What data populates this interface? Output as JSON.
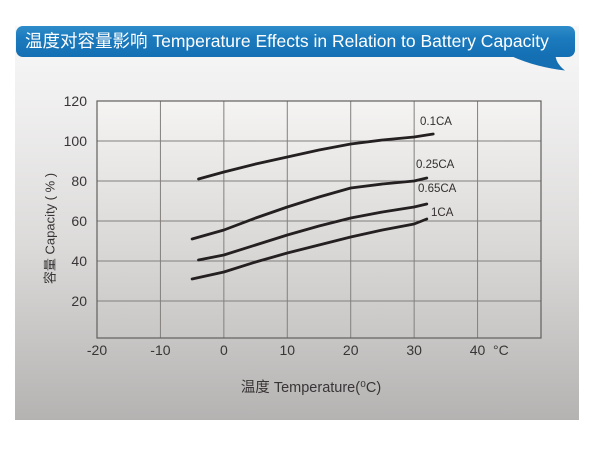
{
  "banner": {
    "text": "温度对容量影响 Temperature Effects in Relation to Battery Capacity"
  },
  "colors": {
    "banner_blue": "#1b7abd",
    "curve": "#241f20",
    "grid": "#82807e",
    "frame": "#61605e",
    "text": "#393536"
  },
  "chart_data": {
    "type": "line",
    "title": "温度对容量影响 Temperature Effects in Relation to Battery Capacity",
    "xlabel": "温度  Temperature(⁰C)",
    "ylabel": "容量 Capacity ( % )",
    "x_unit": "°C",
    "xlim": [
      -20,
      50
    ],
    "ylim": [
      0,
      120
    ],
    "x_ticks": [
      -20,
      -10,
      0,
      10,
      20,
      30,
      40
    ],
    "y_ticks": [
      120,
      100,
      80,
      60,
      40,
      20
    ],
    "grid": "on",
    "legend_position": "labels-at-line-ends",
    "series": [
      {
        "name": "0.1CA",
        "points": [
          [
            -4,
            81
          ],
          [
            0,
            84.5
          ],
          [
            5,
            88.5
          ],
          [
            10,
            92
          ],
          [
            15,
            95.5
          ],
          [
            20,
            98.5
          ],
          [
            25,
            100.5
          ],
          [
            30,
            102
          ],
          [
            33,
            103.5
          ]
        ]
      },
      {
        "name": "0.25CA",
        "points": [
          [
            -5,
            51
          ],
          [
            0,
            55.5
          ],
          [
            5,
            61.5
          ],
          [
            10,
            67
          ],
          [
            15,
            72
          ],
          [
            20,
            76.5
          ],
          [
            25,
            78.5
          ],
          [
            30,
            80
          ],
          [
            32,
            81.5
          ]
        ]
      },
      {
        "name": "0.65CA",
        "points": [
          [
            -4,
            40.5
          ],
          [
            0,
            43
          ],
          [
            5,
            48
          ],
          [
            10,
            53
          ],
          [
            15,
            57.5
          ],
          [
            20,
            61.5
          ],
          [
            25,
            64.5
          ],
          [
            30,
            67
          ],
          [
            32,
            68.5
          ]
        ]
      },
      {
        "name": "1CA",
        "points": [
          [
            -5,
            31
          ],
          [
            0,
            34.5
          ],
          [
            5,
            39.5
          ],
          [
            10,
            44
          ],
          [
            15,
            48
          ],
          [
            20,
            52
          ],
          [
            25,
            55.5
          ],
          [
            30,
            58.5
          ],
          [
            32,
            61
          ]
        ]
      }
    ]
  }
}
